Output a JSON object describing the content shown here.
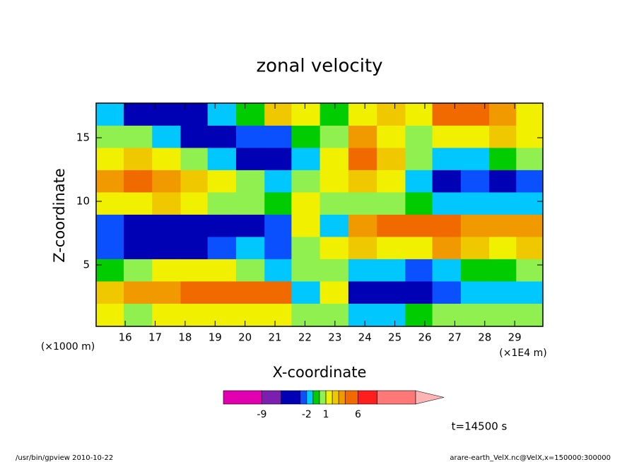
{
  "chart_data": {
    "type": "contour",
    "title": "zonal velocity",
    "x_label": "X-coordinate",
    "y_label": "Z-coordinate",
    "x_unit_left": "(×1000 m)",
    "x_unit_right": "(×1E4 m)",
    "annotation": "t=14500 s",
    "footer_left": "/usr/bin/gpview   2010-10-22",
    "footer_right": "arare-earth_VelX.nc@VelX,x=150000:300000",
    "xlim": [
      15.03,
      29.94
    ],
    "ylim": [
      0.17,
      17.72
    ],
    "xticks": [
      16,
      17,
      18,
      19,
      20,
      21,
      22,
      23,
      24,
      25,
      26,
      27,
      28,
      29
    ],
    "yticks": [
      5,
      10,
      15
    ],
    "x": [
      15.5,
      16.4,
      17.4,
      18.3,
      19.2,
      20.2,
      21.1,
      22.0,
      23.0,
      23.9,
      24.9,
      25.8,
      26.7,
      27.7,
      28.6,
      29.5
    ],
    "y": [
      16.8,
      15.1,
      13.3,
      11.6,
      9.8,
      8.1,
      6.3,
      4.6,
      2.8,
      1.1
    ],
    "z": [
      [
        -1.5,
        -4,
        -4,
        -3.5,
        -2,
        -0.5,
        2.5,
        1,
        -1,
        1.5,
        2.5,
        1.5,
        4.5,
        4.5,
        3.5,
        1.5
      ],
      [
        0.5,
        0,
        -1.5,
        -3.5,
        -4,
        -3,
        -2.5,
        -0.5,
        0.5,
        3,
        1.5,
        0.5,
        1.5,
        1.5,
        2.5,
        1.5
      ],
      [
        1.5,
        2,
        1.5,
        0.5,
        -1.5,
        -4,
        -4,
        -1.5,
        1.5,
        4.5,
        2.5,
        0.5,
        -1.5,
        -1.5,
        -1,
        0
      ],
      [
        3.5,
        4,
        3.5,
        2.5,
        1.5,
        0,
        -1.5,
        0.5,
        1.5,
        2.5,
        1.5,
        -1.5,
        -4,
        -3,
        -4,
        -3
      ],
      [
        1.5,
        1.5,
        2,
        1.5,
        0.5,
        0.5,
        -0.5,
        1.5,
        0.5,
        0.5,
        0,
        -0.5,
        -1.5,
        -1.5,
        -1.5,
        -1.5
      ],
      [
        -3,
        -4,
        -4,
        -4,
        -4,
        -4,
        -3,
        1.5,
        -1.5,
        3.5,
        4.5,
        4.5,
        4.5,
        3.5,
        3.5,
        3.5
      ],
      [
        -2.5,
        -3.5,
        -3.5,
        -3.5,
        -2.5,
        -1.5,
        -3,
        0,
        1.5,
        2.5,
        1.5,
        1.5,
        3,
        2.5,
        1.5,
        2
      ],
      [
        -0.5,
        0.5,
        1.5,
        1.5,
        1.5,
        0.5,
        -1.5,
        0,
        0.5,
        -1.5,
        -1.5,
        -2.5,
        -1.5,
        -0.5,
        -0.5,
        0
      ],
      [
        2.5,
        3,
        3.5,
        4.5,
        5,
        5,
        4.5,
        -1.5,
        1.5,
        -4,
        -4.5,
        -4,
        -3,
        -1.5,
        -2,
        -1.5
      ],
      [
        1.5,
        0.5,
        1.5,
        1.5,
        1.5,
        1.5,
        1.5,
        0.5,
        0,
        -1.5,
        -1.5,
        -0.5,
        0.5,
        0.5,
        0,
        0.5
      ]
    ],
    "levels": [
      -15,
      -9,
      -6,
      -3,
      -2,
      -1,
      0,
      1,
      2,
      3,
      4,
      6,
      9,
      15
    ],
    "colors": [
      "#e000b0",
      "#7a1fb0",
      "#0000b4",
      "#0a50ff",
      "#00c8ff",
      "#00cc00",
      "#90f050",
      "#f0f000",
      "#f0c800",
      "#f09a00",
      "#f06a00",
      "#ff1e1e",
      "#ff7878",
      "#ffb4b4"
    ],
    "colorbar_ticks": [
      -9,
      -2,
      1,
      6
    ]
  }
}
